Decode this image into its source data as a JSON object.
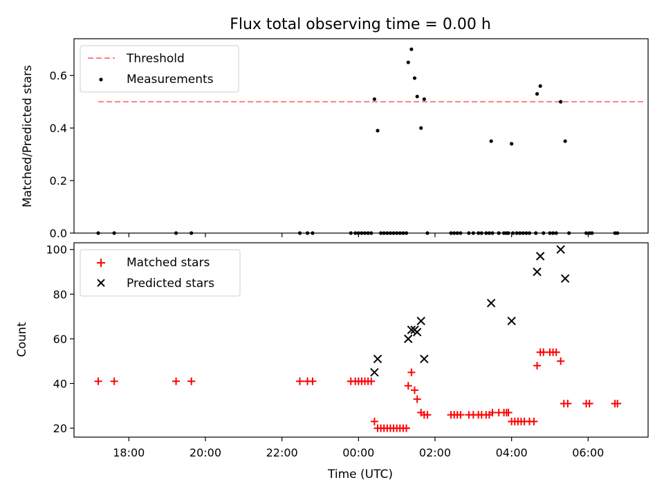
{
  "figure": {
    "title": "Flux total observing time = 0.00 h"
  },
  "colors": {
    "threshold": "#ff7f7f",
    "measurement": "#000000",
    "matched": "#ff0000",
    "predicted": "#000000",
    "axis": "#000000"
  },
  "chart_data": [
    {
      "type": "scatter",
      "panel": "top",
      "title": "Flux total observing time = 0.00 h",
      "xlabel": "",
      "ylabel": "Matched/Predicted stars",
      "xlim": [
        "16:34",
        "07:34"
      ],
      "ylim": [
        0,
        0.74
      ],
      "yticks": [
        0.0,
        0.2,
        0.4,
        0.6
      ],
      "ytick_labels": [
        "0.0",
        "0.2",
        "0.4",
        "0.6"
      ],
      "grid": false,
      "legend_position": "upper left",
      "threshold": {
        "name": "Threshold",
        "style": "dashed",
        "y": 0.5,
        "x_range": [
          "17:12",
          "07:30"
        ]
      },
      "series": [
        {
          "name": "Measurements",
          "marker": "dot",
          "points": [
            [
              "17:12",
              0.0
            ],
            [
              "17:37",
              0.0
            ],
            [
              "19:14",
              0.0
            ],
            [
              "19:38",
              0.0
            ],
            [
              "22:28",
              0.0
            ],
            [
              "22:40",
              0.0
            ],
            [
              "22:48",
              0.0
            ],
            [
              "23:48",
              0.0
            ],
            [
              "23:55",
              0.0
            ],
            [
              "00:00",
              0.0
            ],
            [
              "00:05",
              0.0
            ],
            [
              "00:10",
              0.0
            ],
            [
              "00:15",
              0.0
            ],
            [
              "00:20",
              0.0
            ],
            [
              "00:25",
              0.51
            ],
            [
              "00:30",
              0.39
            ],
            [
              "00:35",
              0.0
            ],
            [
              "00:40",
              0.0
            ],
            [
              "00:45",
              0.0
            ],
            [
              "00:50",
              0.0
            ],
            [
              "00:55",
              0.0
            ],
            [
              "01:00",
              0.0
            ],
            [
              "01:05",
              0.0
            ],
            [
              "01:10",
              0.0
            ],
            [
              "01:15",
              0.0
            ],
            [
              "01:18",
              0.65
            ],
            [
              "01:23",
              0.7
            ],
            [
              "01:28",
              0.59
            ],
            [
              "01:32",
              0.52
            ],
            [
              "01:38",
              0.4
            ],
            [
              "01:43",
              0.51
            ],
            [
              "01:48",
              0.0
            ],
            [
              "02:25",
              0.0
            ],
            [
              "02:30",
              0.0
            ],
            [
              "02:35",
              0.0
            ],
            [
              "02:40",
              0.0
            ],
            [
              "02:53",
              0.0
            ],
            [
              "03:00",
              0.0
            ],
            [
              "03:08",
              0.0
            ],
            [
              "03:13",
              0.0
            ],
            [
              "03:20",
              0.0
            ],
            [
              "03:25",
              0.0
            ],
            [
              "03:30",
              0.0
            ],
            [
              "03:28",
              0.35
            ],
            [
              "03:40",
              0.0
            ],
            [
              "03:48",
              0.0
            ],
            [
              "03:52",
              0.0
            ],
            [
              "03:55",
              0.0
            ],
            [
              "04:00",
              0.34
            ],
            [
              "04:02",
              0.0
            ],
            [
              "04:08",
              0.0
            ],
            [
              "04:13",
              0.0
            ],
            [
              "04:18",
              0.0
            ],
            [
              "04:23",
              0.0
            ],
            [
              "04:28",
              0.0
            ],
            [
              "04:38",
              0.0
            ],
            [
              "04:50",
              0.0
            ],
            [
              "04:40",
              0.53
            ],
            [
              "04:45",
              0.56
            ],
            [
              "05:00",
              0.0
            ],
            [
              "05:05",
              0.0
            ],
            [
              "05:10",
              0.0
            ],
            [
              "05:17",
              0.5
            ],
            [
              "05:24",
              0.35
            ],
            [
              "05:30",
              0.0
            ],
            [
              "05:57",
              0.0
            ],
            [
              "06:02",
              0.0
            ],
            [
              "06:06",
              0.0
            ],
            [
              "06:42",
              0.0
            ],
            [
              "06:46",
              0.0
            ]
          ]
        }
      ]
    },
    {
      "type": "scatter",
      "panel": "bottom",
      "xlabel": "Time (UTC)",
      "ylabel": "Count",
      "xlim": [
        "16:34",
        "07:34"
      ],
      "xticks": [
        "18:00",
        "20:00",
        "22:00",
        "00:00",
        "02:00",
        "04:00",
        "06:00"
      ],
      "ylim": [
        16,
        103
      ],
      "yticks": [
        20,
        40,
        60,
        80,
        100
      ],
      "grid": false,
      "legend_position": "upper left",
      "series": [
        {
          "name": "Matched stars",
          "marker": "plus",
          "points": [
            [
              "17:12",
              41
            ],
            [
              "17:37",
              41
            ],
            [
              "19:14",
              41
            ],
            [
              "19:38",
              41
            ],
            [
              "22:28",
              41
            ],
            [
              "22:40",
              41
            ],
            [
              "22:48",
              41
            ],
            [
              "23:48",
              41
            ],
            [
              "23:55",
              41
            ],
            [
              "00:00",
              41
            ],
            [
              "00:05",
              41
            ],
            [
              "00:10",
              41
            ],
            [
              "00:15",
              41
            ],
            [
              "00:20",
              41
            ],
            [
              "00:25",
              23
            ],
            [
              "00:30",
              20
            ],
            [
              "00:35",
              20
            ],
            [
              "00:40",
              20
            ],
            [
              "00:45",
              20
            ],
            [
              "00:50",
              20
            ],
            [
              "00:55",
              20
            ],
            [
              "01:00",
              20
            ],
            [
              "01:05",
              20
            ],
            [
              "01:10",
              20
            ],
            [
              "01:15",
              20
            ],
            [
              "01:18",
              39
            ],
            [
              "01:23",
              45
            ],
            [
              "01:28",
              37
            ],
            [
              "01:32",
              33
            ],
            [
              "01:38",
              27
            ],
            [
              "01:43",
              26
            ],
            [
              "01:48",
              26
            ],
            [
              "02:25",
              26
            ],
            [
              "02:30",
              26
            ],
            [
              "02:35",
              26
            ],
            [
              "02:40",
              26
            ],
            [
              "02:53",
              26
            ],
            [
              "03:00",
              26
            ],
            [
              "03:08",
              26
            ],
            [
              "03:13",
              26
            ],
            [
              "03:20",
              26
            ],
            [
              "03:25",
              26
            ],
            [
              "03:30",
              27
            ],
            [
              "03:40",
              27
            ],
            [
              "03:48",
              27
            ],
            [
              "03:52",
              27
            ],
            [
              "03:55",
              27
            ],
            [
              "04:00",
              23
            ],
            [
              "04:05",
              23
            ],
            [
              "04:10",
              23
            ],
            [
              "04:15",
              23
            ],
            [
              "04:20",
              23
            ],
            [
              "04:28",
              23
            ],
            [
              "04:35",
              23
            ],
            [
              "04:40",
              48
            ],
            [
              "04:45",
              54
            ],
            [
              "04:50",
              54
            ],
            [
              "05:00",
              54
            ],
            [
              "05:05",
              54
            ],
            [
              "05:10",
              54
            ],
            [
              "05:17",
              50
            ],
            [
              "05:22",
              31
            ],
            [
              "05:28",
              31
            ],
            [
              "05:57",
              31
            ],
            [
              "06:02",
              31
            ],
            [
              "06:42",
              31
            ],
            [
              "06:46",
              31
            ]
          ]
        },
        {
          "name": "Predicted stars",
          "marker": "x",
          "points": [
            [
              "00:25",
              45
            ],
            [
              "00:30",
              51
            ],
            [
              "01:18",
              60
            ],
            [
              "01:23",
              64
            ],
            [
              "01:28",
              64
            ],
            [
              "01:32",
              63
            ],
            [
              "01:38",
              68
            ],
            [
              "01:43",
              51
            ],
            [
              "03:28",
              76
            ],
            [
              "04:00",
              68
            ],
            [
              "04:40",
              90
            ],
            [
              "04:45",
              97
            ],
            [
              "05:17",
              100
            ],
            [
              "05:24",
              87
            ]
          ]
        }
      ]
    }
  ]
}
